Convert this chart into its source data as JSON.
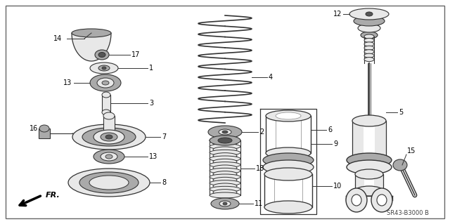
{
  "bg_color": "#ffffff",
  "border_color": "#444444",
  "line_color": "#333333",
  "fill_light": "#e8e8e8",
  "fill_mid": "#aaaaaa",
  "fill_dark": "#555555",
  "diagram_ref": "SR43-B3000 B"
}
